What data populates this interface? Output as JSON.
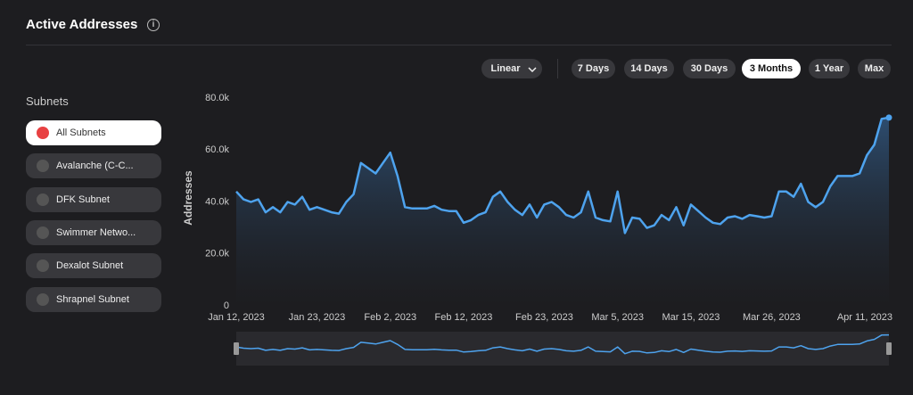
{
  "header": {
    "title": "Active Addresses"
  },
  "controls": {
    "scale": "Linear",
    "ranges": [
      {
        "label": "7 Days",
        "selected": false
      },
      {
        "label": "14 Days",
        "selected": false
      },
      {
        "label": "30 Days",
        "selected": false
      },
      {
        "label": "3 Months",
        "selected": true
      },
      {
        "label": "1 Year",
        "selected": false
      },
      {
        "label": "Max",
        "selected": false
      }
    ]
  },
  "sidebar": {
    "title": "Subnets",
    "items": [
      {
        "label": "All Subnets",
        "selected": true
      },
      {
        "label": "Avalanche (C-C...",
        "selected": false
      },
      {
        "label": "DFK Subnet",
        "selected": false
      },
      {
        "label": "Swimmer Netwo...",
        "selected": false
      },
      {
        "label": "Dexalot Subnet",
        "selected": false
      },
      {
        "label": "Shrapnel Subnet",
        "selected": false
      }
    ]
  },
  "chart_data": {
    "type": "area",
    "y_label": "Addresses",
    "color": "#4ea3ee",
    "x": [
      "2023-01-12",
      "2023-01-13",
      "2023-01-14",
      "2023-01-15",
      "2023-01-16",
      "2023-01-17",
      "2023-01-18",
      "2023-01-19",
      "2023-01-20",
      "2023-01-21",
      "2023-01-22",
      "2023-01-23",
      "2023-01-24",
      "2023-01-25",
      "2023-01-26",
      "2023-01-27",
      "2023-01-28",
      "2023-01-29",
      "2023-01-30",
      "2023-01-31",
      "2023-02-01",
      "2023-02-02",
      "2023-02-03",
      "2023-02-04",
      "2023-02-05",
      "2023-02-06",
      "2023-02-07",
      "2023-02-08",
      "2023-02-09",
      "2023-02-10",
      "2023-02-11",
      "2023-02-12",
      "2023-02-13",
      "2023-02-14",
      "2023-02-15",
      "2023-02-16",
      "2023-02-17",
      "2023-02-18",
      "2023-02-19",
      "2023-02-20",
      "2023-02-21",
      "2023-02-22",
      "2023-02-23",
      "2023-02-24",
      "2023-02-25",
      "2023-02-26",
      "2023-02-27",
      "2023-02-28",
      "2023-03-01",
      "2023-03-02",
      "2023-03-03",
      "2023-03-04",
      "2023-03-05",
      "2023-03-06",
      "2023-03-07",
      "2023-03-08",
      "2023-03-09",
      "2023-03-10",
      "2023-03-11",
      "2023-03-12",
      "2023-03-13",
      "2023-03-14",
      "2023-03-15",
      "2023-03-16",
      "2023-03-17",
      "2023-03-18",
      "2023-03-19",
      "2023-03-20",
      "2023-03-21",
      "2023-03-22",
      "2023-03-23",
      "2023-03-24",
      "2023-03-25",
      "2023-03-26",
      "2023-03-27",
      "2023-03-28",
      "2023-03-29",
      "2023-03-30",
      "2023-03-31",
      "2023-04-01",
      "2023-04-02",
      "2023-04-03",
      "2023-04-04",
      "2023-04-05",
      "2023-04-06",
      "2023-04-07",
      "2023-04-08",
      "2023-04-09",
      "2023-04-10",
      "2023-04-11"
    ],
    "values": [
      44000,
      41000,
      40000,
      41000,
      36000,
      38000,
      36000,
      40000,
      39000,
      42000,
      37000,
      38000,
      37000,
      36000,
      35500,
      40000,
      43000,
      55000,
      53000,
      51000,
      55000,
      59000,
      50000,
      38000,
      37500,
      37500,
      37500,
      38500,
      37000,
      36500,
      36500,
      32000,
      33000,
      35000,
      36000,
      42000,
      44000,
      40000,
      37000,
      35000,
      39000,
      34000,
      39000,
      40000,
      38000,
      35000,
      34000,
      36000,
      44000,
      34000,
      33000,
      32500,
      44000,
      28000,
      34000,
      33500,
      30000,
      31000,
      35000,
      33000,
      38000,
      31000,
      39000,
      36500,
      34000,
      32000,
      31500,
      34000,
      34500,
      33500,
      35000,
      34500,
      34000,
      34500,
      44000,
      44000,
      42000,
      47000,
      40000,
      38000,
      40000,
      46000,
      50000,
      50000,
      50000,
      51000,
      58000,
      62000,
      72000,
      72500
    ],
    "xlim": [
      "2023-01-12",
      "2023-04-11"
    ],
    "xticks": [
      {
        "value": "2023-01-12",
        "label": "Jan 12, 2023"
      },
      {
        "value": "2023-01-23",
        "label": "Jan 23, 2023"
      },
      {
        "value": "2023-02-02",
        "label": "Feb 2, 2023"
      },
      {
        "value": "2023-02-12",
        "label": "Feb 12, 2023"
      },
      {
        "value": "2023-02-23",
        "label": "Feb 23, 2023"
      },
      {
        "value": "2023-03-05",
        "label": "Mar 5, 2023"
      },
      {
        "value": "2023-03-15",
        "label": "Mar 15, 2023"
      },
      {
        "value": "2023-03-26",
        "label": "Mar 26, 2023"
      },
      {
        "value": "2023-04-11",
        "label": "Apr 11, 2023"
      }
    ],
    "ylim": [
      0,
      80000
    ],
    "yticks": [
      0,
      {
        "value": 20000,
        "label": "20.0k"
      },
      {
        "value": 40000,
        "label": "40.0k"
      },
      {
        "value": 60000,
        "label": "60.0k"
      },
      {
        "value": 80000,
        "label": "80.0k"
      }
    ],
    "grid": false
  }
}
